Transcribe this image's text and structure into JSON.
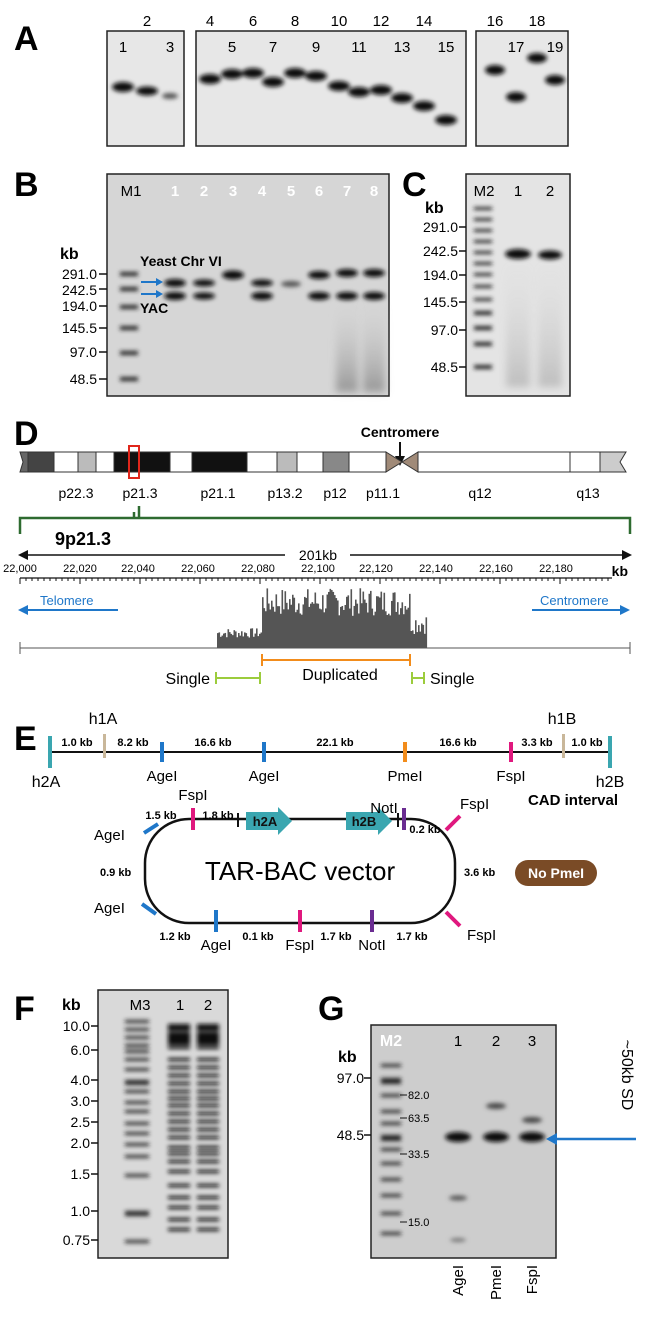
{
  "panels": {
    "A": {
      "label": "A",
      "lanes": [
        "1",
        "2",
        "3",
        "4",
        "5",
        "6",
        "7",
        "8",
        "9",
        "10",
        "11",
        "12",
        "13",
        "14",
        "15",
        "16",
        "17",
        "18",
        "19"
      ]
    },
    "B": {
      "label": "B",
      "marker": "M1",
      "lanes": [
        "1",
        "2",
        "3",
        "4",
        "5",
        "6",
        "7",
        "8"
      ],
      "unit": "kb",
      "ticks": [
        "291.0",
        "242.5",
        "194.0",
        "145.5",
        "97.0",
        "48.5"
      ],
      "annot_chr": "Yeast Chr VI",
      "annot_yac": "YAC"
    },
    "C": {
      "label": "C",
      "marker": "M2",
      "lanes": [
        "1",
        "2"
      ],
      "unit": "kb",
      "ticks": [
        "291.0",
        "242.5",
        "194.0",
        "145.5",
        "97.0",
        "48.5"
      ]
    },
    "D": {
      "label": "D",
      "centromere": "Centromere",
      "bands": [
        "p22.3",
        "p21.3",
        "p21.1",
        "p13.2",
        "p12",
        "p11.1",
        "q12",
        "q13"
      ],
      "region": "9p21.3",
      "span": "201kb",
      "axis_ticks": [
        "22,000",
        "22,020",
        "22,040",
        "22,060",
        "22,080",
        "22,100",
        "22,120",
        "22,140",
        "22,160",
        "22,180"
      ],
      "axis_unit": "kb",
      "telomere": "Telomere",
      "centromere2": "Centromere",
      "single_left": "Single",
      "duplicated": "Duplicated",
      "single_right": "Single"
    },
    "E": {
      "label": "E",
      "h1a": "h1A",
      "h1b": "h1B",
      "h2a": "h2A",
      "h2b": "h2B",
      "segments": [
        "1.0 kb",
        "8.2 kb",
        "16.6 kb",
        "22.1 kb",
        "16.6 kb",
        "3.3 kb",
        "1.0 kb"
      ],
      "sites": [
        "AgeI",
        "AgeI",
        "PmeI",
        "FspI"
      ],
      "cad": "CAD interval",
      "vector": "TAR-BAC vector",
      "box_h2a": "h2A",
      "box_h2b": "h2B",
      "v_sites": {
        "fsp_top": "FspI",
        "not_top": "NotI",
        "fsp_tr": "FspI",
        "age_l1": "AgeI",
        "age_l2": "AgeI",
        "fsp_br": "FspI",
        "age_b": "AgeI",
        "fsp_b": "FspI",
        "not_b": "NotI"
      },
      "v_dist": {
        "d15": "1.5 kb",
        "d18": "1.8 kb",
        "d02": "0.2 kb",
        "d09": "0.9 kb",
        "d36": "3.6 kb",
        "d12": "1.2 kb",
        "d01": "0.1 kb",
        "d17a": "1.7 kb",
        "d17b": "1.7 kb"
      },
      "no_pme": "No PmeI"
    },
    "F": {
      "label": "F",
      "unit": "kb",
      "marker": "M3",
      "lanes": [
        "1",
        "2"
      ],
      "ticks": [
        "10.0",
        "6.0",
        "4.0",
        "3.0",
        "2.5",
        "2.0",
        "1.5",
        "1.0",
        "0.75"
      ]
    },
    "G": {
      "label": "G",
      "unit": "kb",
      "marker": "M2",
      "lanes": [
        "1",
        "2",
        "3"
      ],
      "ticks_left": [
        "97.0",
        "48.5"
      ],
      "ticks_inner": [
        "82.0",
        "63.5",
        "33.5",
        "15.0"
      ],
      "sd": "~50kb SD",
      "enzymes": [
        "AgeI",
        "PmeI",
        "FspI"
      ]
    }
  },
  "colors": {
    "blue": "#1f77c9",
    "magenta": "#e0187e",
    "orange": "#f28c1b",
    "purple": "#6a2c91",
    "teal": "#3aa6b0",
    "tan": "#c9b79a",
    "green": "#2e6b30",
    "lime": "#9ccc3c",
    "brown": "#7a4b26",
    "red": "#e0261b"
  }
}
